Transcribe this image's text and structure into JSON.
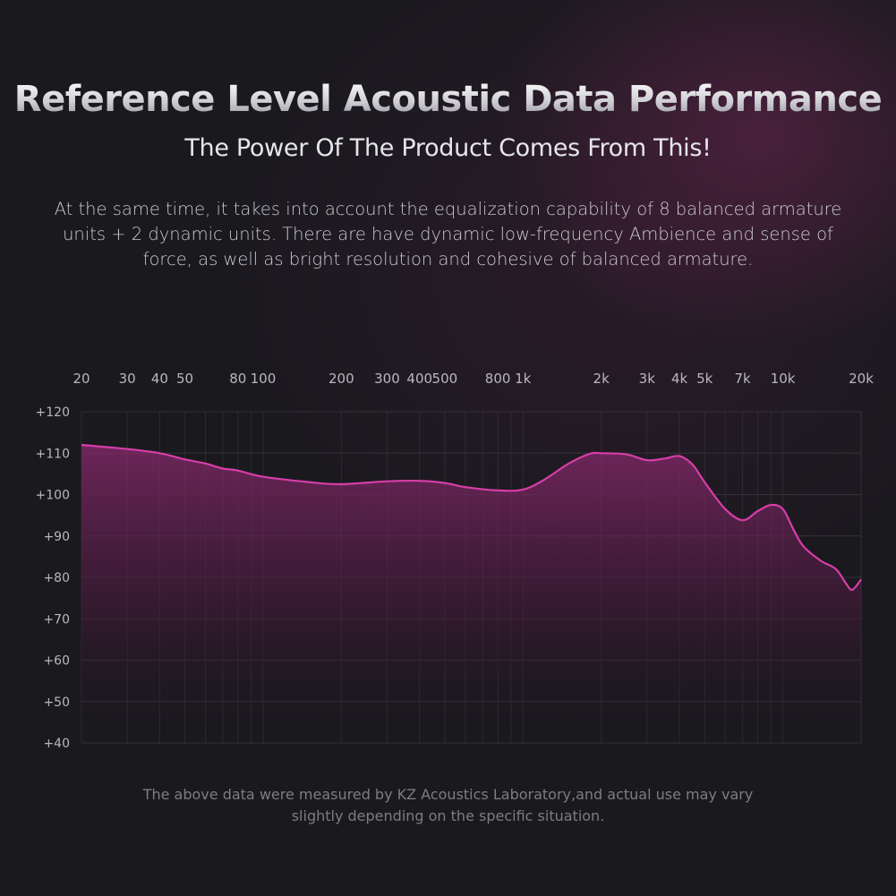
{
  "header": {
    "title": "Reference Level Acoustic Data Performance",
    "subtitle": "The Power Of The Product Comes From This!",
    "description": "At the same time, it takes into account the equalization capability of 8 balanced armature units + 2 dynamic units. There are have dynamic low-frequency Ambience and sense of force, as well as bright resolution and cohesive of balanced armature."
  },
  "footer": {
    "note": "The above data were measured by KZ Acoustics Laboratory,and actual use may vary slightly depending on the specific situation."
  },
  "colors": {
    "background": "#1a191e",
    "curve": "#d63ea8",
    "grid": "#3a383f",
    "tick_text": "#b9b8be"
  },
  "chart_data": {
    "type": "area",
    "title": "",
    "xlabel": "",
    "ylabel": "",
    "x_scale": "log",
    "xlim": [
      20,
      20000
    ],
    "ylim": [
      40,
      120
    ],
    "grid": true,
    "x_ticks": [
      {
        "value": 20,
        "label": "20"
      },
      {
        "value": 30,
        "label": "30"
      },
      {
        "value": 40,
        "label": "40"
      },
      {
        "value": 50,
        "label": "50"
      },
      {
        "value": 80,
        "label": "80"
      },
      {
        "value": 100,
        "label": "100"
      },
      {
        "value": 200,
        "label": "200"
      },
      {
        "value": 300,
        "label": "300"
      },
      {
        "value": 400,
        "label": "400"
      },
      {
        "value": 500,
        "label": "500"
      },
      {
        "value": 800,
        "label": "800"
      },
      {
        "value": 1000,
        "label": "1k"
      },
      {
        "value": 2000,
        "label": "2k"
      },
      {
        "value": 3000,
        "label": "3k"
      },
      {
        "value": 4000,
        "label": "4k"
      },
      {
        "value": 5000,
        "label": "5k"
      },
      {
        "value": 7000,
        "label": "7k"
      },
      {
        "value": 10000,
        "label": "10k"
      },
      {
        "value": 20000,
        "label": "20k"
      }
    ],
    "y_ticks": [
      {
        "value": 120,
        "label": "+120"
      },
      {
        "value": 110,
        "label": "+110"
      },
      {
        "value": 100,
        "label": "+100"
      },
      {
        "value": 90,
        "label": "+90"
      },
      {
        "value": 80,
        "label": "+80"
      },
      {
        "value": 70,
        "label": "+70"
      },
      {
        "value": 60,
        "label": "+60"
      },
      {
        "value": 50,
        "label": "+50"
      },
      {
        "value": 40,
        "label": "+40"
      }
    ],
    "series": [
      {
        "x": [
          20,
          30,
          40,
          50,
          60,
          70,
          80,
          100,
          150,
          200,
          300,
          400,
          500,
          600,
          800,
          1000,
          1200,
          1500,
          1800,
          2000,
          2500,
          3000,
          3500,
          4000,
          4500,
          5000,
          6000,
          7000,
          8000,
          9000,
          10000,
          11000,
          12000,
          14000,
          16000,
          17500,
          18500,
          20000
        ],
        "y": [
          112,
          111,
          110,
          108.5,
          107.5,
          106.3,
          105.8,
          104.3,
          103,
          102.5,
          103.2,
          103.3,
          102.8,
          101.8,
          101,
          101.2,
          103.5,
          107.5,
          109.8,
          110,
          109.7,
          108.3,
          108.7,
          109.3,
          107.2,
          103,
          96.5,
          93.8,
          96,
          97.5,
          96.5,
          91.5,
          87.5,
          84,
          82,
          78.5,
          77,
          79.5
        ]
      }
    ]
  }
}
